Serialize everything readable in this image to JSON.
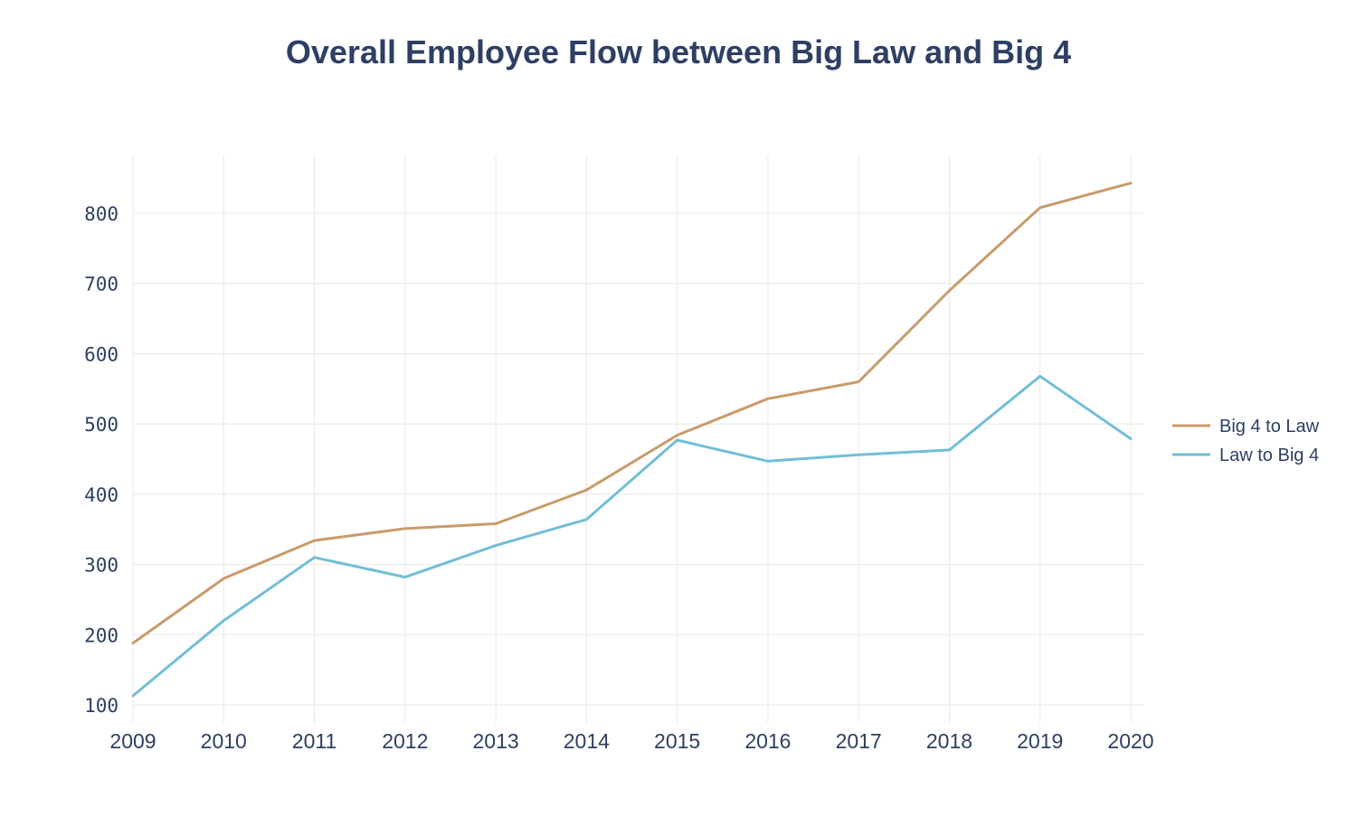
{
  "chart_data": {
    "type": "line",
    "title": "Overall Employee Flow between Big Law and Big 4",
    "xlabel": "",
    "ylabel": "",
    "x": [
      2009,
      2010,
      2011,
      2012,
      2013,
      2014,
      2015,
      2016,
      2017,
      2018,
      2019,
      2020
    ],
    "x_tick_labels": [
      "2009",
      "2010",
      "2011",
      "2012",
      "2013",
      "2014",
      "2015",
      "2016",
      "2017",
      "2018",
      "2019",
      "2020"
    ],
    "y_ticks": [
      100,
      200,
      300,
      400,
      500,
      600,
      700,
      800
    ],
    "y_tick_labels": [
      "100",
      "200",
      "300",
      "400",
      "500",
      "600",
      "700",
      "800"
    ],
    "ylim": [
      100,
      875
    ],
    "grid": true,
    "legend_position": "right",
    "series": [
      {
        "name": "Big 4 to Law",
        "color": "#c99b6b",
        "values": [
          188,
          280,
          334,
          351,
          358,
          406,
          484,
          536,
          560,
          690,
          808,
          843
        ]
      },
      {
        "name": "Law to Big 4",
        "color": "#72bed6",
        "values": [
          113,
          220,
          310,
          282,
          327,
          364,
          477,
          447,
          456,
          463,
          568,
          479
        ]
      }
    ]
  }
}
